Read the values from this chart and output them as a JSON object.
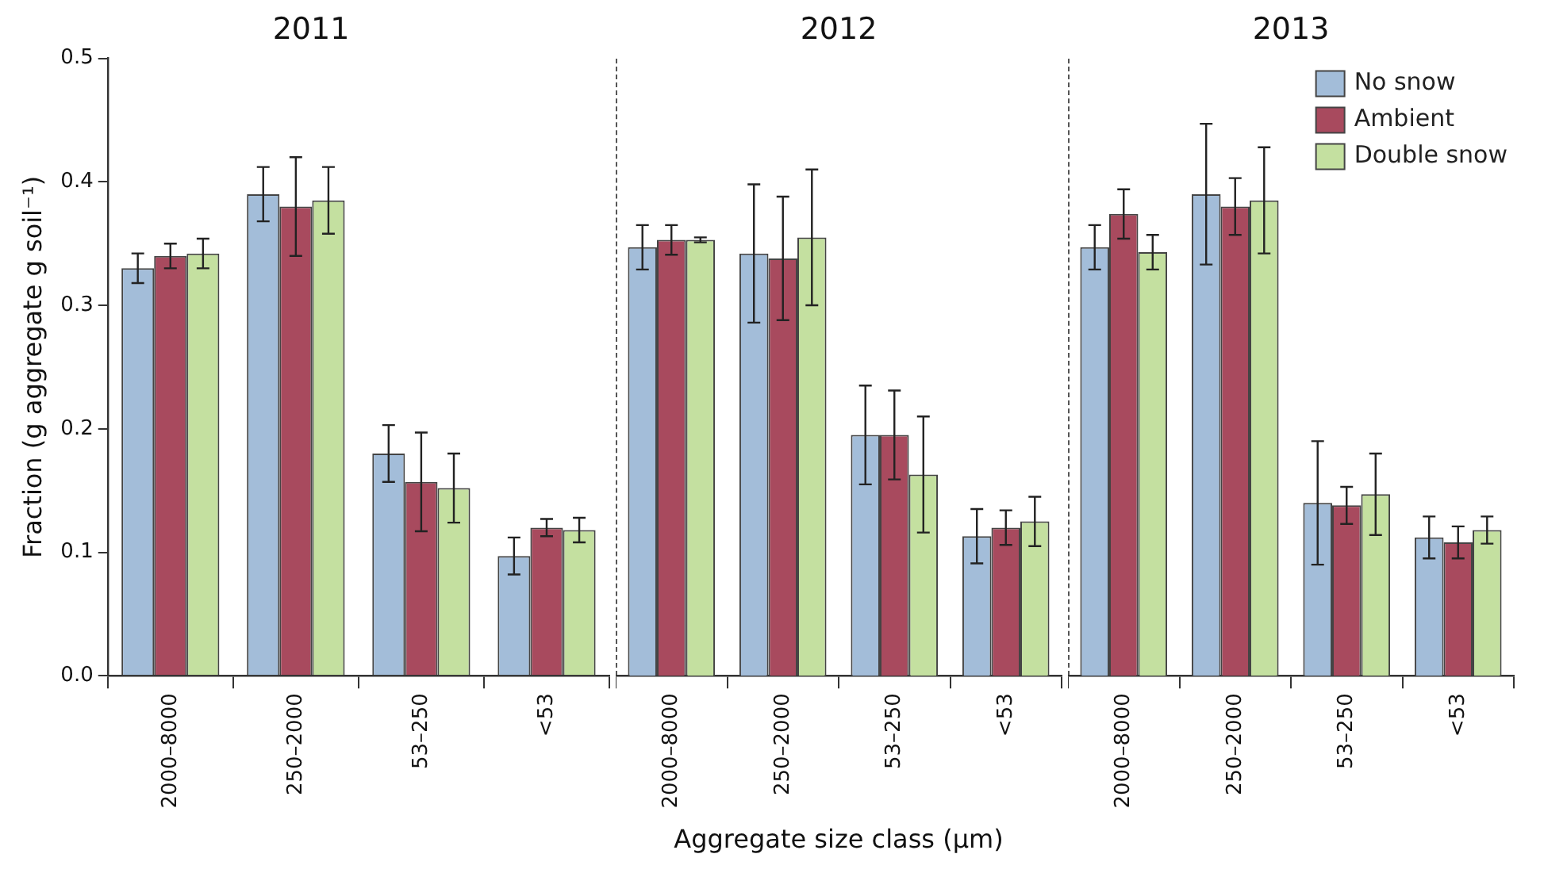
{
  "chart_data": [
    {
      "type": "bar",
      "title": "2011",
      "ylabel": "Fraction (g aggregate g soil⁻¹)",
      "categories": [
        "2000–8000",
        "250–2000",
        "53–250",
        "<53"
      ],
      "ylim": [
        0,
        0.5
      ],
      "yticks": [
        {
          "value": 0,
          "label": "0.0"
        },
        0.1,
        0.2,
        0.3,
        0.4,
        0.5
      ],
      "grid": false,
      "series": [
        {
          "color": "#a3bdd9",
          "values": [
            0.33,
            0.39,
            0.18,
            0.097
          ],
          "errors": [
            0.012,
            0.022,
            0.023,
            0.015
          ]
        },
        {
          "color": "#a84a5e",
          "values": [
            0.34,
            0.38,
            0.157,
            0.12
          ],
          "errors": [
            0.01,
            0.04,
            0.04,
            0.007
          ]
        },
        {
          "color": "#c4e0a0",
          "values": [
            0.342,
            0.385,
            0.152,
            0.118
          ],
          "errors": [
            0.012,
            0.027,
            0.028,
            0.01
          ]
        }
      ]
    },
    {
      "type": "bar",
      "title": "2012",
      "xlabel": "Aggregate size class (µm)",
      "categories": [
        "2000–8000",
        "250–2000",
        "53–250",
        "<53"
      ],
      "ylim": [
        0,
        0.5
      ],
      "yticks": [
        0.0,
        0.1,
        0.2,
        0.3,
        0.4,
        0.5
      ],
      "tick_labels": "x",
      "grid": false,
      "series": [
        {
          "color": "#a3bdd9",
          "values": [
            0.347,
            0.342,
            0.195,
            0.113
          ],
          "errors": [
            0.018,
            0.056,
            0.04,
            0.022
          ]
        },
        {
          "color": "#a84a5e",
          "values": [
            0.353,
            0.338,
            0.195,
            0.12
          ],
          "errors": [
            0.012,
            0.05,
            0.036,
            0.014
          ]
        },
        {
          "color": "#c4e0a0",
          "values": [
            0.353,
            0.355,
            0.163,
            0.125
          ],
          "errors": [
            0.002,
            0.055,
            0.047,
            0.02
          ]
        }
      ]
    },
    {
      "type": "bar",
      "title": "2013",
      "categories": [
        "2000–8000",
        "250–2000",
        "53–250",
        "<53"
      ],
      "ylim": [
        0,
        0.5
      ],
      "yticks": [
        0.0,
        0.1,
        0.2,
        0.3,
        0.4,
        0.5
      ],
      "tick_labels": "x",
      "grid": false,
      "legend": "top right",
      "series": [
        {
          "name": "No snow",
          "color": "#a3bdd9",
          "values": [
            0.347,
            0.39,
            0.14,
            0.112
          ],
          "errors": [
            0.018,
            0.057,
            0.05,
            0.017
          ]
        },
        {
          "name": "Ambient",
          "color": "#a84a5e",
          "values": [
            0.374,
            0.38,
            0.138,
            0.108
          ],
          "errors": [
            0.02,
            0.023,
            0.015,
            0.013
          ]
        },
        {
          "name": "Double snow",
          "color": "#c4e0a0",
          "values": [
            0.343,
            0.385,
            0.147,
            0.118
          ],
          "errors": [
            0.014,
            0.043,
            0.033,
            0.011
          ]
        }
      ]
    }
  ]
}
